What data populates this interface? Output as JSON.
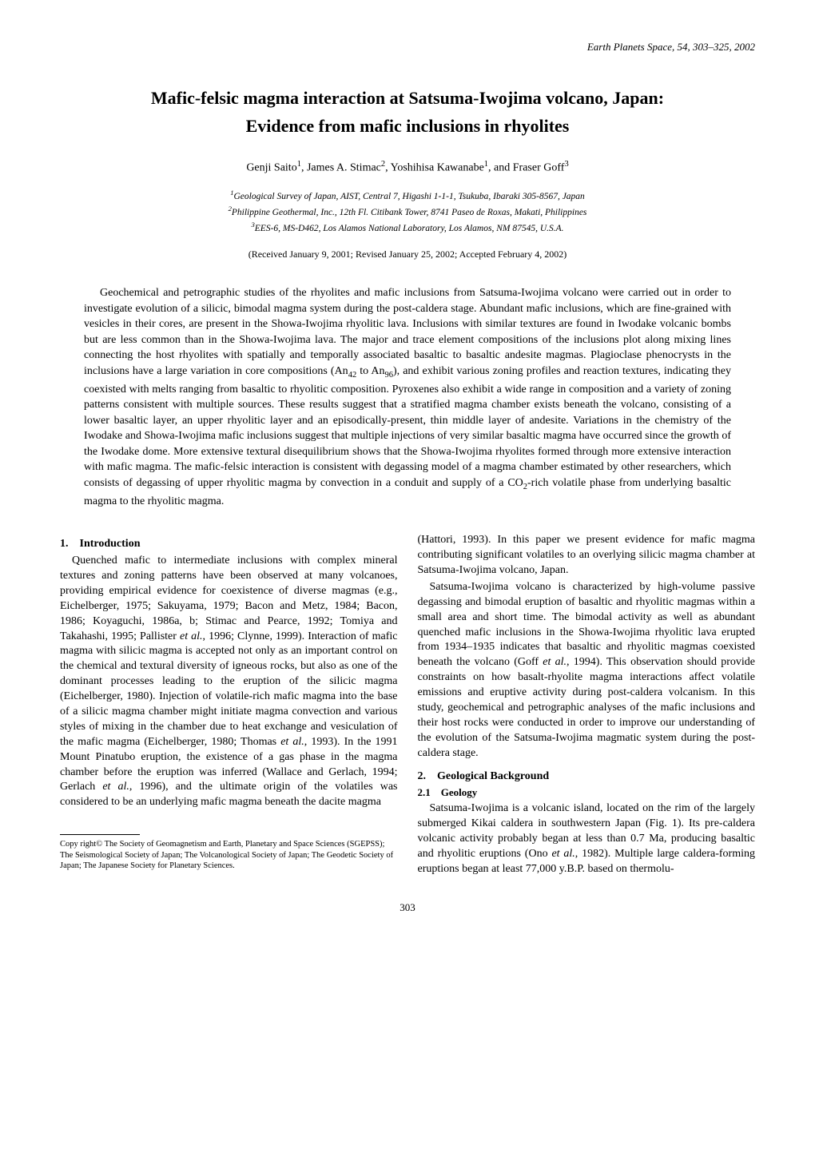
{
  "journal_info": "Earth Planets Space, 54, 303–325, 2002",
  "title_line1": "Mafic-felsic magma interaction at Satsuma-Iwojima volcano, Japan:",
  "title_line2": "Evidence from mafic inclusions in rhyolites",
  "authors_html": "Genji Saito<sup>1</sup>, James A. Stimac<sup>2</sup>, Yoshihisa Kawanabe<sup>1</sup>, and Fraser Goff<sup>3</sup>",
  "affiliations": {
    "aff1": "Geological Survey of Japan, AIST, Central 7, Higashi 1-1-1, Tsukuba, Ibaraki 305-8567, Japan",
    "aff2": "Philippine Geothermal, Inc., 12th Fl. Citibank Tower, 8741 Paseo de Roxas, Makati, Philippines",
    "aff3": "EES-6, MS-D462, Los Alamos National Laboratory, Los Alamos, NM 87545, U.S.A."
  },
  "received": "(Received January 9, 2001; Revised January 25, 2002; Accepted February 4, 2002)",
  "abstract_html": "Geochemical and petrographic studies of the rhyolites and mafic inclusions from Satsuma-Iwojima volcano were carried out in order to investigate evolution of a silicic, bimodal magma system during the post-caldera stage. Abundant mafic inclusions, which are fine-grained with vesicles in their cores, are present in the Showa-Iwojima rhyolitic lava. Inclusions with similar textures are found in Iwodake volcanic bombs but are less common than in the Showa-Iwojima lava. The major and trace element compositions of the inclusions plot along mixing lines connecting the host rhyolites with spatially and temporally associated basaltic to basaltic andesite magmas. Plagioclase phenocrysts in the inclusions have a large variation in core compositions (An<sub>42</sub> to An<sub>96</sub>), and exhibit various zoning profiles and reaction textures, indicating they coexisted with melts ranging from basaltic to rhyolitic composition. Pyroxenes also exhibit a wide range in composition and a variety of zoning patterns consistent with multiple sources. These results suggest that a stratified magma chamber exists beneath the volcano, consisting of a lower basaltic layer, an upper rhyolitic layer and an episodically-present, thin middle layer of andesite. Variations in the chemistry of the Iwodake and Showa-Iwojima mafic inclusions suggest that multiple injections of very similar basaltic magma have occurred since the growth of the Iwodake dome. More extensive textural disequilibrium shows that the Showa-Iwojima rhyolites formed through more extensive interaction with mafic magma. The mafic-felsic interaction is consistent with degassing model of a magma chamber estimated by other researchers, which consists of degassing of upper rhyolitic magma by convection in a conduit and supply of a CO<sub>2</sub>-rich volatile phase from underlying basaltic magma to the rhyolitic magma.",
  "section1": {
    "heading": "1. Introduction",
    "para1_html": "Quenched mafic to intermediate inclusions with complex mineral textures and zoning patterns have been observed at many volcanoes, providing empirical evidence for coexistence of diverse magmas (e.g., Eichelberger, 1975; Sakuyama, 1979; Bacon and Metz, 1984; Bacon, 1986; Koyaguchi, 1986a, b; Stimac and Pearce, 1992; Tomiya and Takahashi, 1995; Pallister <i>et al.</i>, 1996; Clynne, 1999). Interaction of mafic magma with silicic magma is accepted not only as an important control on the chemical and textural diversity of igneous rocks, but also as one of the dominant processes leading to the eruption of the silicic magma (Eichelberger, 1980). Injection of volatile-rich mafic magma into the base of a silicic magma chamber might initiate magma convection and various styles of mixing in the chamber due to heat exchange and vesiculation of the mafic magma (Eichelberger, 1980; Thomas <i>et al.</i>, 1993). In the 1991 Mount Pinatubo eruption, the existence of a gas phase in the magma chamber before the eruption was inferred (Wallace and Gerlach, 1994; Gerlach <i>et al.</i>, 1996), and the ultimate origin of the volatiles was considered to be an underlying mafic magma beneath the dacite magma",
    "para1_cont_html": "(Hattori, 1993). In this paper we present evidence for mafic magma contributing significant volatiles to an overlying silicic magma chamber at Satsuma-Iwojima volcano, Japan.",
    "para2_html": "Satsuma-Iwojima volcano is characterized by high-volume passive degassing and bimodal eruption of basaltic and rhyolitic magmas within a small area and short time. The bimodal activity as well as abundant quenched mafic inclusions in the Showa-Iwojima rhyolitic lava erupted from 1934–1935 indicates that basaltic and rhyolitic magmas coexisted beneath the volcano (Goff <i>et al.</i>, 1994). This observation should provide constraints on how basalt-rhyolite magma interactions affect volatile emissions and eruptive activity during post-caldera volcanism. In this study, geochemical and petrographic analyses of the mafic inclusions and their host rocks were conducted in order to improve our understanding of the evolution of the Satsuma-Iwojima magmatic system during the post-caldera stage."
  },
  "section2": {
    "heading": "2. Geological Background",
    "sub1_heading": "2.1 Geology",
    "para_html": "Satsuma-Iwojima is a volcanic island, located on the rim of the largely submerged Kikai caldera in southwestern Japan (Fig. 1). Its pre-caldera volcanic activity probably began at less than 0.7 Ma, producing basaltic and rhyolitic eruptions (Ono <i>et al.</i>, 1982). Multiple large caldera-forming eruptions began at least 77,000 y.B.P. based on thermolu-"
  },
  "footnote": "Copy right© The Society of Geomagnetism and Earth, Planetary and Space Sciences (SGEPSS); The Seismological Society of Japan; The Volcanological Society of Japan; The Geodetic Society of Japan; The Japanese Society for Planetary Sciences.",
  "page_number": "303"
}
